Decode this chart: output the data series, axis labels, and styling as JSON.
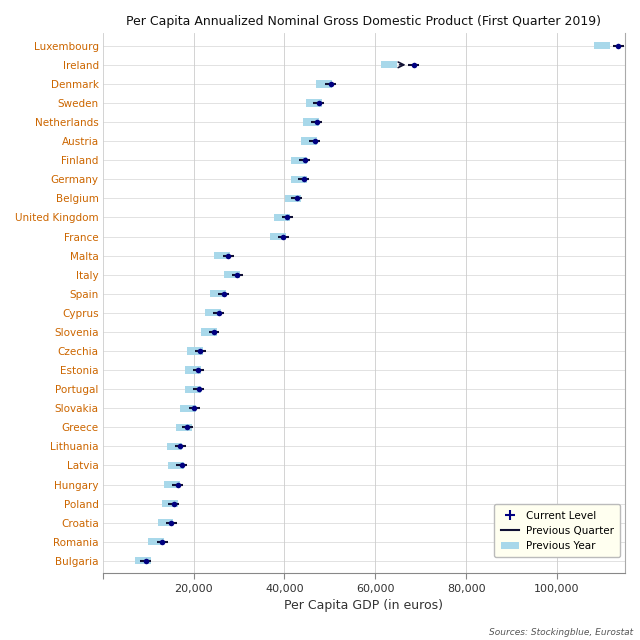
{
  "title": "Per Capita Annualized Nominal Gross Domestic Product (First Quarter 2019)",
  "xlabel": "Per Capita GDP (in euros)",
  "source": "Sources: Stockingblue, Eurostat",
  "countries": [
    "Luxembourg",
    "Ireland",
    "Denmark",
    "Sweden",
    "Netherlands",
    "Austria",
    "Finland",
    "Germany",
    "Belgium",
    "United Kingdom",
    "France",
    "Malta",
    "Italy",
    "Spain",
    "Cyprus",
    "Slovenia",
    "Czechia",
    "Estonia",
    "Portugal",
    "Slovakia",
    "Greece",
    "Lithuania",
    "Latvia",
    "Hungary",
    "Poland",
    "Croatia",
    "Romania",
    "Bulgaria"
  ],
  "current": [
    113500,
    68500,
    50200,
    47600,
    47100,
    46700,
    44500,
    44200,
    42700,
    40600,
    39700,
    27600,
    29600,
    26600,
    25500,
    24500,
    21500,
    21000,
    21100,
    20100,
    18600,
    17100,
    17400,
    16500,
    15600,
    15100,
    13100,
    9500
  ],
  "prev_quarter": [
    113500,
    68500,
    50200,
    47600,
    47100,
    46700,
    44500,
    44200,
    42700,
    40600,
    39700,
    27600,
    29600,
    26600,
    25500,
    24500,
    21500,
    21000,
    21100,
    20100,
    18600,
    17100,
    17400,
    16500,
    15600,
    15100,
    13100,
    9500
  ],
  "prev_year": [
    110000,
    63000,
    48800,
    46500,
    45800,
    45500,
    43300,
    43200,
    41800,
    39500,
    38500,
    26300,
    28500,
    25300,
    24300,
    23300,
    20300,
    19800,
    19800,
    18800,
    17800,
    15800,
    16200,
    15200,
    14800,
    13800,
    11800,
    8800
  ],
  "ireland_prev_quarter": 68500,
  "ireland_current": 68500,
  "dot_color": "#000080",
  "square_color": "#A8D8EA",
  "line_color": "#333333",
  "bg_color": "#FFFFFF",
  "plot_bg_color": "#FFFFFF",
  "grid_color": "#CCCCCC",
  "xlim_max": 115000,
  "xtick_values": [
    0,
    20000,
    40000,
    60000,
    80000,
    100000
  ],
  "xtick_labels": [
    "",
    "20,000",
    "40,000",
    "60,000",
    "80,000",
    "100,000"
  ]
}
